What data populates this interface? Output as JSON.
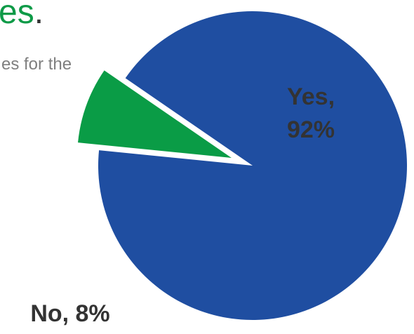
{
  "header": {
    "title_fragment": "es",
    "title_punctuation": ".",
    "subtitle_fragment": "es for the"
  },
  "colors": {
    "title_text": "#0e9a47",
    "title_punctuation": "#333333",
    "subtitle_text": "#7f7f7f",
    "label_text": "#333333"
  },
  "chart_data": {
    "type": "pie",
    "categories": [
      "Yes",
      "No"
    ],
    "values": [
      92,
      8
    ],
    "unit": "%",
    "labels": [
      "Yes,",
      "92%",
      "No, 8%"
    ],
    "series": [
      {
        "name": "Yes",
        "value": 92,
        "color": "#1f4ea1",
        "exploded": false
      },
      {
        "name": "No",
        "value": 8,
        "color": "#0a9c46",
        "exploded": true
      }
    ],
    "legend": "none"
  }
}
